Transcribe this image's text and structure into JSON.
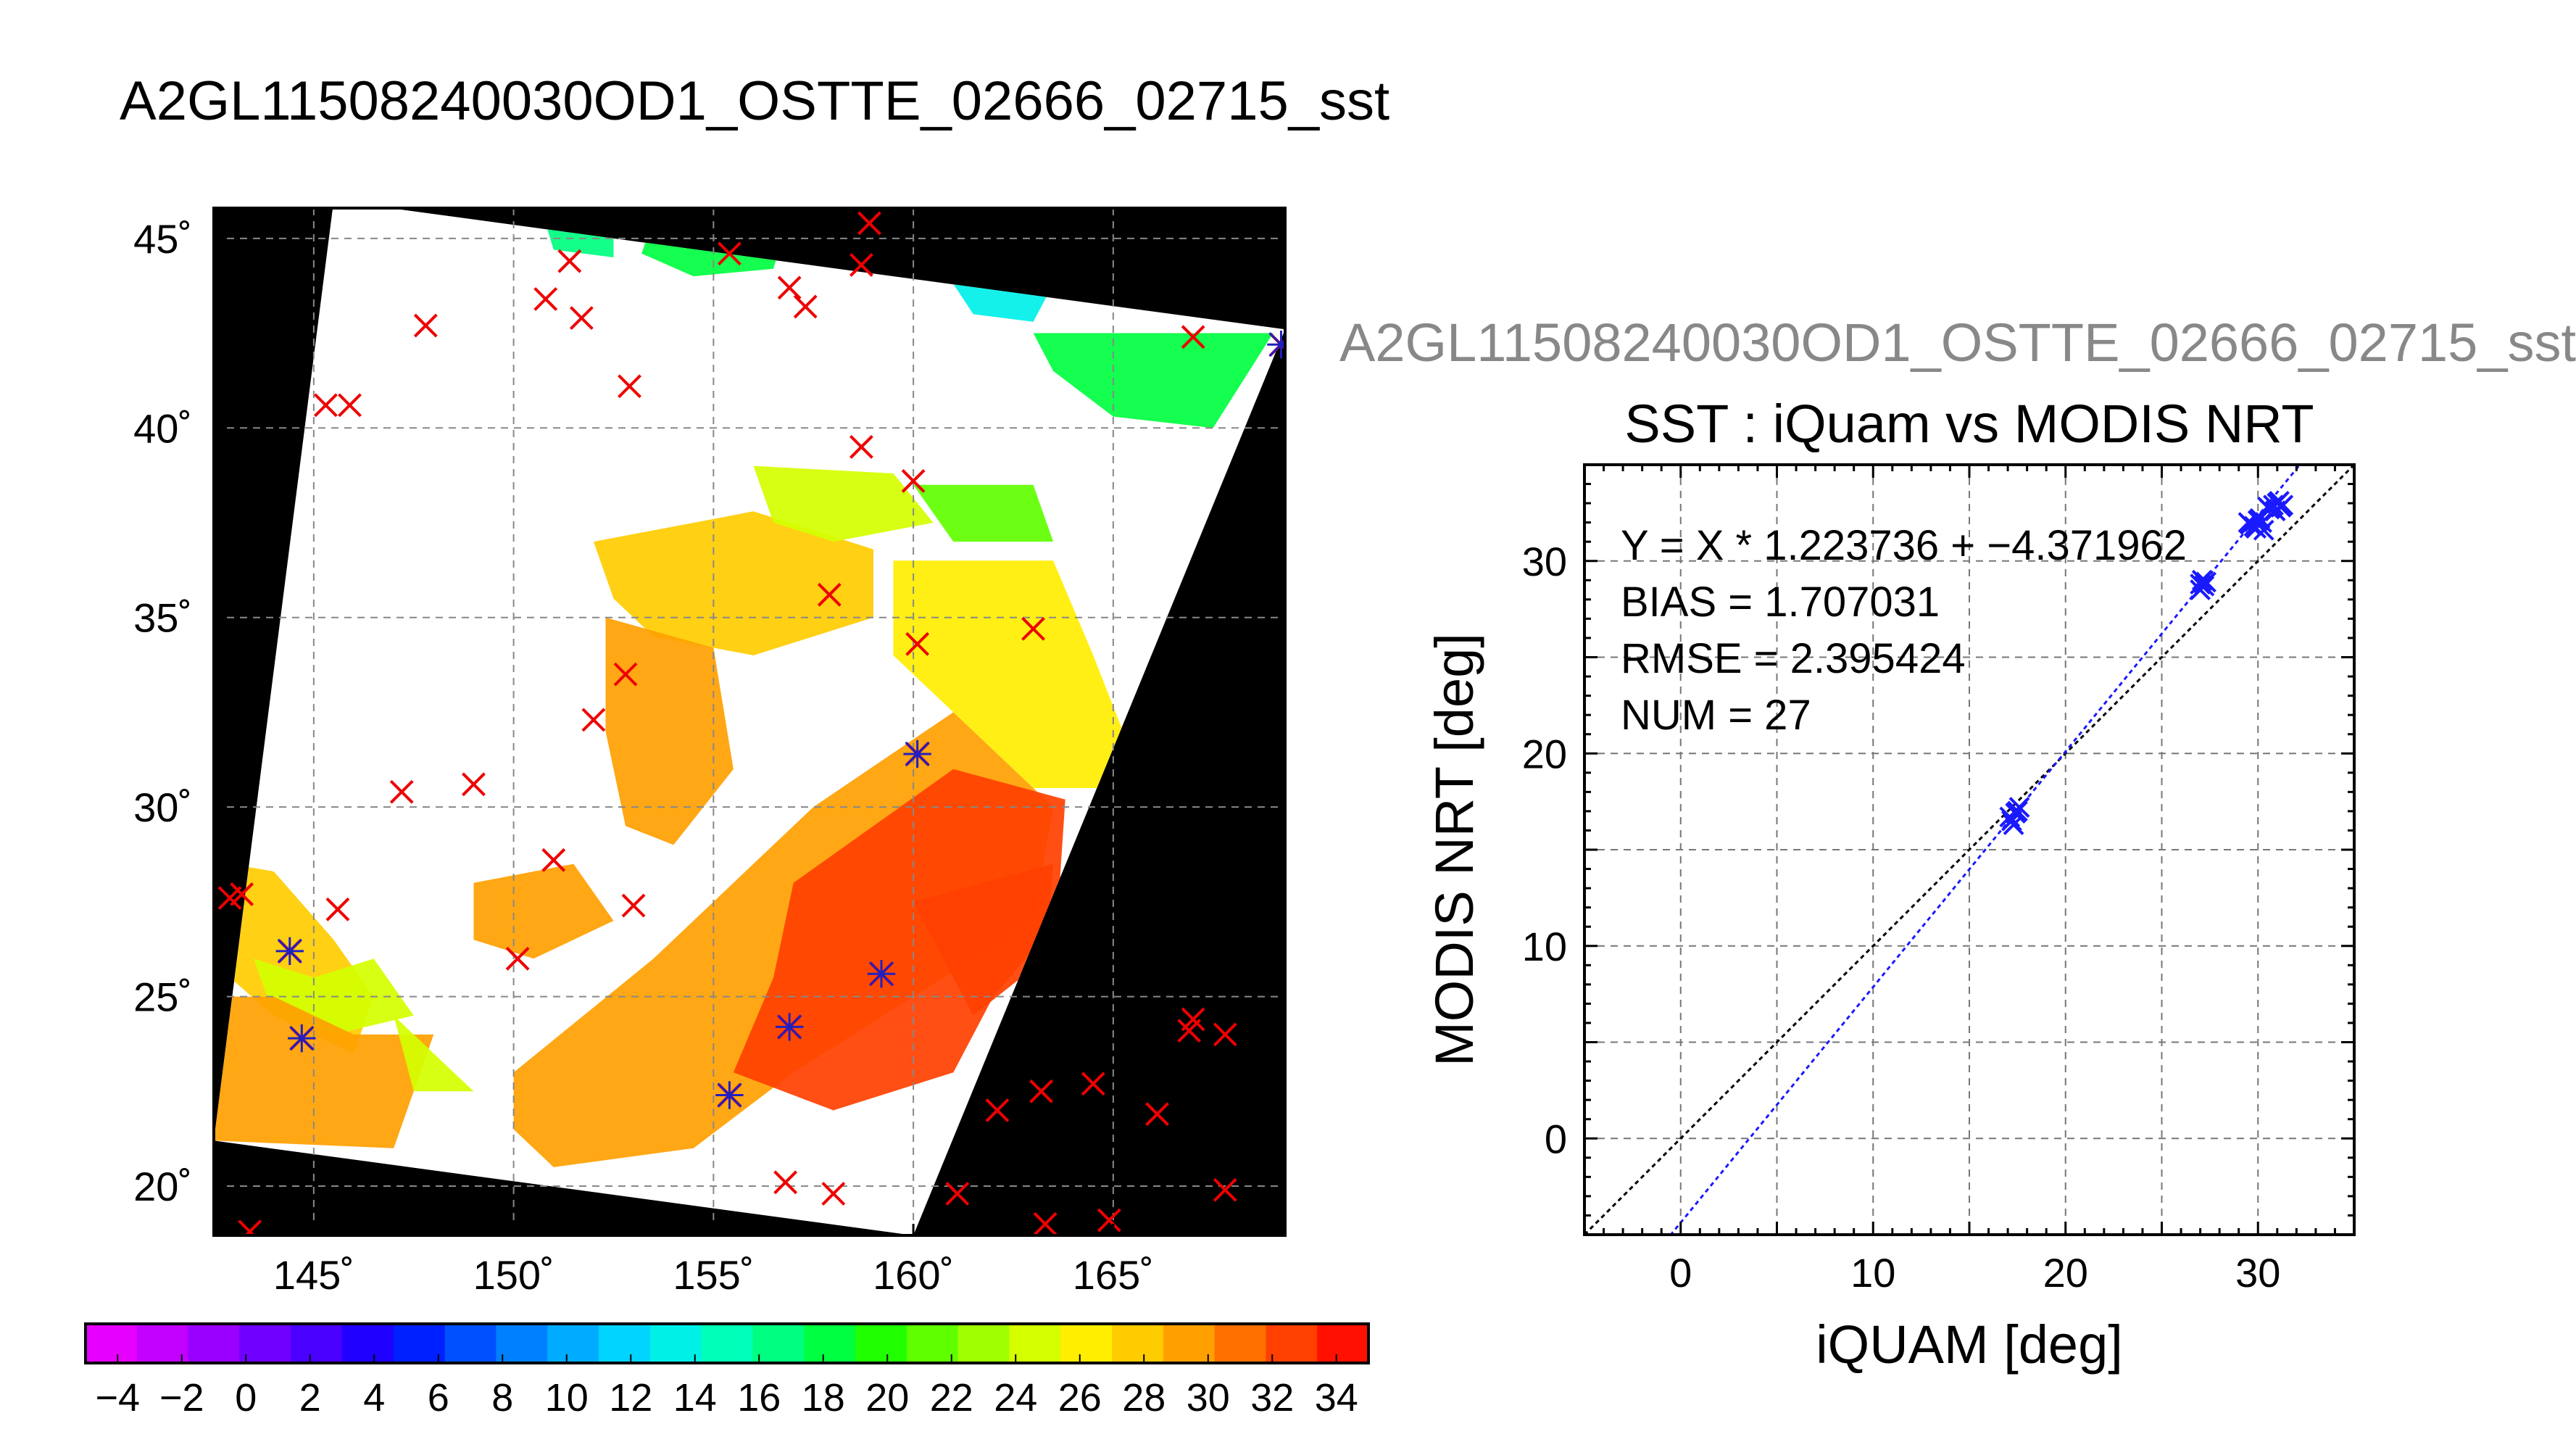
{
  "figure": {
    "main_title": "A2GL11508240030OD1_OSTTE_02666_02715_sst",
    "sub_title": "A2GL11508240030OD1_OSTTE_02666_02715_sst"
  },
  "chart_data": [
    {
      "type": "heatmap",
      "title": "A2GL11508240030OD1_OSTTE_02666_02715_sst",
      "description_type": "satellite SST swath map",
      "xlim": [
        142.5,
        169.3
      ],
      "ylim": [
        18.7,
        45.8
      ],
      "x_ticks": [
        145,
        150,
        155,
        160,
        165
      ],
      "x_tick_labels": [
        "145˚",
        "150˚",
        "155˚",
        "160˚",
        "165˚"
      ],
      "y_ticks": [
        20,
        25,
        30,
        35,
        40,
        45
      ],
      "y_tick_labels": [
        "20˚",
        "25˚",
        "30˚",
        "35˚",
        "40˚",
        "45˚"
      ],
      "grid": true,
      "swath_corners_lonlat": [
        [
          145.5,
          46.0
        ],
        [
          169.3,
          42.6
        ],
        [
          160.0,
          18.7
        ],
        [
          142.5,
          21.2
        ]
      ],
      "colorbar": {
        "vmin": -5,
        "vmax": 35,
        "tick_values": [
          -4,
          -2,
          0,
          2,
          4,
          6,
          8,
          10,
          12,
          14,
          16,
          18,
          20,
          22,
          24,
          26,
          28,
          30,
          32,
          34
        ],
        "tick_labels": [
          "−4",
          "−2",
          "0",
          "2",
          "4",
          "6",
          "8",
          "10",
          "12",
          "14",
          "16",
          "18",
          "20",
          "22",
          "24",
          "26",
          "28",
          "30",
          "32",
          "34"
        ],
        "colors": [
          "#e600ff",
          "#c200ff",
          "#9a00ff",
          "#7000ff",
          "#4a00ff",
          "#2000ff",
          "#0020ff",
          "#0050ff",
          "#0080ff",
          "#00acff",
          "#00d4ff",
          "#00f0e8",
          "#00ffb8",
          "#00ff80",
          "#00ff40",
          "#20ff00",
          "#60ff00",
          "#a0ff00",
          "#d4ff00",
          "#ffee00",
          "#ffcc00",
          "#ffa000",
          "#ff7000",
          "#ff4000",
          "#ff1000"
        ]
      },
      "sst_regions": [
        {
          "value": 18,
          "polygon": [
            [
              153.5,
              45.5
            ],
            [
              156.8,
              45.3
            ],
            [
              156.5,
              44.2
            ],
            [
              154.5,
              44.0
            ],
            [
              153.2,
              44.6
            ]
          ]
        },
        {
          "value": 16,
          "polygon": [
            [
              150.8,
              45.4
            ],
            [
              152.5,
              45.4
            ],
            [
              152.5,
              44.5
            ],
            [
              151.0,
              44.7
            ]
          ]
        },
        {
          "value": 18,
          "polygon": [
            [
              163.0,
              42.5
            ],
            [
              169.0,
              42.5
            ],
            [
              167.5,
              40.0
            ],
            [
              165.0,
              40.3
            ],
            [
              163.5,
              41.5
            ]
          ]
        },
        {
          "value": 13,
          "polygon": [
            [
              161.0,
              43.8
            ],
            [
              163.5,
              43.8
            ],
            [
              163.0,
              42.8
            ],
            [
              161.5,
              43.0
            ]
          ]
        },
        {
          "value": 28,
          "polygon": [
            [
              152.0,
              37.0
            ],
            [
              156.0,
              37.8
            ],
            [
              159.0,
              36.8
            ],
            [
              159.0,
              35.0
            ],
            [
              156.0,
              34.0
            ],
            [
              153.5,
              34.5
            ],
            [
              152.5,
              35.5
            ]
          ]
        },
        {
          "value": 29,
          "polygon": [
            [
              152.3,
              35.0
            ],
            [
              155.0,
              34.2
            ],
            [
              155.5,
              31.0
            ],
            [
              154.0,
              29.0
            ],
            [
              152.8,
              29.5
            ],
            [
              152.3,
              32.0
            ]
          ]
        },
        {
          "value": 25,
          "polygon": [
            [
              156.0,
              39.0
            ],
            [
              159.5,
              38.8
            ],
            [
              160.5,
              37.5
            ],
            [
              158.0,
              37.0
            ],
            [
              156.5,
              37.5
            ]
          ]
        },
        {
          "value": 21,
          "polygon": [
            [
              160.0,
              38.5
            ],
            [
              163.0,
              38.5
            ],
            [
              163.5,
              37.0
            ],
            [
              161.0,
              37.0
            ]
          ]
        },
        {
          "value": 26,
          "polygon": [
            [
              159.5,
              36.5
            ],
            [
              163.5,
              36.5
            ],
            [
              164.5,
              34.0
            ],
            [
              165.8,
              30.5
            ],
            [
              163.0,
              30.5
            ],
            [
              161.0,
              32.5
            ],
            [
              159.5,
              34.0
            ]
          ]
        },
        {
          "value": 30,
          "polygon": [
            [
              150.0,
              23.0
            ],
            [
              153.5,
              26.0
            ],
            [
              157.5,
              30.0
            ],
            [
              161.0,
              32.5
            ],
            [
              163.5,
              30.0
            ],
            [
              163.0,
              27.0
            ],
            [
              157.0,
              23.0
            ],
            [
              154.5,
              21.0
            ],
            [
              151.0,
              20.5
            ],
            [
              150.0,
              21.5
            ]
          ]
        },
        {
          "value": 32,
          "polygon": [
            [
              157.0,
              28.0
            ],
            [
              161.0,
              31.0
            ],
            [
              163.8,
              30.2
            ],
            [
              163.6,
              27.0
            ],
            [
              162.0,
              25.0
            ],
            [
              161.0,
              23.0
            ],
            [
              158.0,
              22.0
            ],
            [
              155.5,
              23.0
            ],
            [
              156.5,
              25.5
            ]
          ]
        },
        {
          "value": 33,
          "polygon": [
            [
              160.0,
              27.5
            ],
            [
              163.5,
              28.5
            ],
            [
              163.3,
              26.0
            ],
            [
              161.5,
              24.5
            ]
          ]
        },
        {
          "value": 28,
          "polygon": [
            [
              142.9,
              28.5
            ],
            [
              144.0,
              28.3
            ],
            [
              145.5,
              26.5
            ],
            [
              146.5,
              25.0
            ],
            [
              146.0,
              23.5
            ],
            [
              144.0,
              24.5
            ],
            [
              142.9,
              25.5
            ]
          ]
        },
        {
          "value": 24,
          "polygon": [
            [
              143.5,
              26.0
            ],
            [
              145.0,
              25.5
            ],
            [
              146.5,
              26.0
            ],
            [
              147.5,
              24.5
            ],
            [
              145.5,
              24.0
            ],
            [
              144.0,
              24.5
            ]
          ]
        },
        {
          "value": 30,
          "polygon": [
            [
              142.5,
              21.2
            ],
            [
              147.0,
              21.0
            ],
            [
              148.0,
              24.0
            ],
            [
              146.0,
              24.0
            ],
            [
              144.0,
              25.0
            ],
            [
              142.6,
              25.0
            ]
          ]
        },
        {
          "value": 25,
          "polygon": [
            [
              147.0,
              24.5
            ],
            [
              148.5,
              23.0
            ],
            [
              149.0,
              22.5
            ],
            [
              147.5,
              22.5
            ]
          ]
        },
        {
          "value": 30,
          "polygon": [
            [
              149.0,
              28.0
            ],
            [
              151.5,
              28.5
            ],
            [
              152.5,
              27.0
            ],
            [
              150.5,
              26.0
            ],
            [
              149.0,
              26.5
            ]
          ]
        }
      ],
      "stations_red_x": [
        [
          145.3,
          40.6
        ],
        [
          145.9,
          40.6
        ],
        [
          147.8,
          42.7
        ],
        [
          150.8,
          43.4
        ],
        [
          151.4,
          44.4
        ],
        [
          151.7,
          42.9
        ],
        [
          152.9,
          41.1
        ],
        [
          155.4,
          44.6
        ],
        [
          156.9,
          43.7
        ],
        [
          157.3,
          43.2
        ],
        [
          158.7,
          44.3
        ],
        [
          158.9,
          45.4
        ],
        [
          167.0,
          42.4
        ],
        [
          158.7,
          39.5
        ],
        [
          160.0,
          38.6
        ],
        [
          157.9,
          35.6
        ],
        [
          163.0,
          34.7
        ],
        [
          160.1,
          34.3
        ],
        [
          152.8,
          33.5
        ],
        [
          152.0,
          32.3
        ],
        [
          147.2,
          30.4
        ],
        [
          149.0,
          30.6
        ],
        [
          151.0,
          28.6
        ],
        [
          153.0,
          27.4
        ],
        [
          145.6,
          27.3
        ],
        [
          142.9,
          27.6
        ],
        [
          143.2,
          27.7
        ],
        [
          150.1,
          26.0
        ],
        [
          166.9,
          24.1
        ],
        [
          167.0,
          24.4
        ],
        [
          167.8,
          24.0
        ],
        [
          164.5,
          22.7
        ],
        [
          163.2,
          22.5
        ],
        [
          162.1,
          22.0
        ],
        [
          166.1,
          21.9
        ],
        [
          156.8,
          20.1
        ],
        [
          158.0,
          19.8
        ],
        [
          161.1,
          19.8
        ],
        [
          167.8,
          19.9
        ],
        [
          163.3,
          19.0
        ],
        [
          164.9,
          19.1
        ],
        [
          143.4,
          18.8
        ]
      ],
      "stations_blue_star": [
        [
          160.1,
          31.4
        ],
        [
          159.2,
          25.6
        ],
        [
          144.4,
          26.2
        ],
        [
          144.7,
          23.9
        ],
        [
          156.9,
          24.2
        ],
        [
          155.4,
          22.4
        ],
        [
          169.2,
          42.2
        ]
      ]
    },
    {
      "type": "scatter",
      "title": "SST : iQuam vs MODIS NRT",
      "xlabel": "iQUAM [deg]",
      "ylabel": "MODIS NRT [deg]",
      "xlim": [
        -5,
        35
      ],
      "ylim": [
        -5,
        35
      ],
      "x_ticks": [
        0,
        10,
        20,
        30
      ],
      "y_ticks": [
        0,
        10,
        20,
        30
      ],
      "grid": true,
      "annotations": [
        "Y = X * 1.223736 + −4.371962",
        "BIAS = 1.707031",
        "RMSE = 2.395424",
        "NUM = 27"
      ],
      "fit": {
        "slope": 1.223736,
        "intercept": -4.371962
      },
      "identity_line": true,
      "points": [
        [
          17.2,
          16.5
        ],
        [
          17.4,
          16.9
        ],
        [
          17.6,
          17.2
        ],
        [
          17.3,
          16.3
        ],
        [
          17.5,
          17.0
        ],
        [
          27.0,
          28.5
        ],
        [
          27.1,
          29.0
        ],
        [
          27.3,
          28.9
        ],
        [
          27.0,
          28.8
        ],
        [
          29.5,
          32.0
        ],
        [
          29.8,
          31.8
        ],
        [
          30.0,
          32.1
        ],
        [
          30.3,
          31.6
        ],
        [
          29.6,
          31.9
        ],
        [
          30.1,
          32.2
        ],
        [
          30.5,
          32.8
        ],
        [
          30.8,
          32.9
        ],
        [
          31.0,
          33.0
        ],
        [
          31.2,
          32.8
        ],
        [
          30.9,
          32.6
        ],
        [
          31.1,
          33.1
        ],
        [
          30.6,
          32.7
        ],
        [
          29.9,
          31.7
        ],
        [
          30.2,
          32.0
        ],
        [
          27.2,
          28.7
        ],
        [
          17.1,
          16.7
        ],
        [
          31.3,
          32.9
        ]
      ]
    }
  ]
}
